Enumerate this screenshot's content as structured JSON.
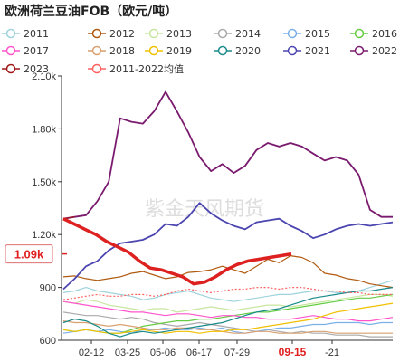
{
  "title": "欧洲荷兰豆油FOB（欧元/吨）",
  "watermark": "紫金天风期货",
  "chart_data": {
    "type": "line",
    "title": "欧洲荷兰豆油FOB（欧元/吨）",
    "x_ticks": [
      "02-12",
      "03-25",
      "05-06",
      "06-17",
      "07-29",
      "09-15",
      "-21"
    ],
    "highlight_tick": "09-15",
    "y_ticks": [
      "600",
      "900",
      "1.20k",
      "1.50k",
      "1.80k",
      "2.10k"
    ],
    "ylim": [
      600,
      2100
    ],
    "current_label": "1.09k",
    "current_value": 1090,
    "legend_position": "top",
    "series": [
      {
        "name": "2011",
        "color": "#9ed3dc",
        "style": "thin",
        "values": [
          870,
          880,
          900,
          880,
          870,
          860,
          850,
          830,
          840,
          860,
          870,
          880,
          860,
          840,
          830,
          820,
          830,
          840,
          850,
          860,
          860,
          870,
          880,
          880,
          870,
          870,
          880,
          900,
          920,
          940
        ]
      },
      {
        "name": "2012",
        "color": "#b05a10",
        "style": "thin",
        "values": [
          960,
          965,
          950,
          940,
          950,
          960,
          980,
          990,
          970,
          950,
          960,
          985,
          990,
          1000,
          1020,
          1000,
          980,
          1020,
          1060,
          1040,
          1080,
          1070,
          1040,
          980,
          970,
          950,
          940,
          920,
          910,
          900
        ]
      },
      {
        "name": "2013",
        "color": "#c8e6a0",
        "style": "thin",
        "values": [
          820,
          810,
          830,
          820,
          800,
          790,
          780,
          770,
          780,
          780,
          760,
          770,
          780,
          790,
          780,
          770,
          780,
          790,
          800,
          800,
          790,
          800,
          810,
          820,
          830,
          840,
          850,
          860,
          860,
          850
        ]
      },
      {
        "name": "2014",
        "color": "#aaaaaa",
        "style": "thin",
        "values": [
          760,
          750,
          740,
          740,
          730,
          720,
          730,
          720,
          700,
          690,
          680,
          690,
          700,
          690,
          680,
          670,
          660,
          650,
          660,
          650,
          640,
          650,
          640,
          640,
          630,
          630,
          630,
          620,
          620,
          620
        ]
      },
      {
        "name": "2015",
        "color": "#7ab0e8",
        "style": "thin",
        "values": [
          640,
          650,
          660,
          650,
          660,
          650,
          640,
          660,
          660,
          670,
          660,
          660,
          670,
          660,
          670,
          650,
          640,
          650,
          660,
          670,
          670,
          680,
          690,
          690,
          700,
          700,
          700,
          690,
          700,
          700
        ]
      },
      {
        "name": "2016",
        "color": "#66cc44",
        "style": "thin",
        "values": [
          660,
          650,
          660,
          650,
          640,
          640,
          660,
          680,
          690,
          700,
          710,
          710,
          720,
          720,
          730,
          740,
          750,
          760,
          760,
          770,
          780,
          790,
          800,
          810,
          820,
          830,
          840,
          840,
          850,
          860
        ]
      },
      {
        "name": "2017",
        "color": "#ff55cc",
        "style": "thin",
        "values": [
          820,
          810,
          800,
          790,
          780,
          770,
          760,
          760,
          750,
          740,
          750,
          750,
          740,
          730,
          740,
          740,
          730,
          730,
          720,
          720,
          720,
          730,
          740,
          730,
          720,
          720,
          710,
          710,
          720,
          730
        ]
      },
      {
        "name": "2018",
        "color": "#d9a070",
        "style": "thin",
        "values": [
          710,
          700,
          700,
          690,
          680,
          690,
          680,
          670,
          660,
          660,
          670,
          670,
          660,
          660,
          650,
          640,
          640,
          650,
          650,
          640,
          640,
          640,
          650,
          650,
          640,
          640,
          640,
          640,
          640,
          640
        ]
      },
      {
        "name": "2019",
        "color": "#f0c000",
        "style": "thin",
        "values": [
          660,
          650,
          660,
          650,
          640,
          640,
          650,
          660,
          650,
          640,
          650,
          650,
          640,
          650,
          650,
          660,
          660,
          670,
          680,
          690,
          700,
          710,
          720,
          740,
          760,
          770,
          780,
          790,
          800,
          810
        ]
      },
      {
        "name": "2020",
        "color": "#1a8a8a",
        "style": "thin",
        "values": [
          700,
          720,
          710,
          680,
          640,
          620,
          640,
          650,
          640,
          650,
          660,
          670,
          680,
          690,
          700,
          720,
          740,
          760,
          770,
          780,
          800,
          820,
          840,
          850,
          860,
          870,
          880,
          880,
          890,
          900
        ]
      },
      {
        "name": "2021",
        "color": "#4b45b0",
        "style": "medium",
        "values": [
          890,
          950,
          1020,
          1050,
          1110,
          1150,
          1160,
          1170,
          1200,
          1260,
          1250,
          1300,
          1380,
          1320,
          1280,
          1250,
          1230,
          1270,
          1280,
          1290,
          1250,
          1220,
          1180,
          1200,
          1230,
          1250,
          1260,
          1250,
          1260,
          1270
        ]
      },
      {
        "name": "2022",
        "color": "#7a1a6e",
        "style": "medium",
        "values": [
          1290,
          1300,
          1310,
          1390,
          1500,
          1860,
          1840,
          1830,
          1900,
          2010,
          1900,
          1780,
          1640,
          1560,
          1600,
          1550,
          1590,
          1680,
          1720,
          1700,
          1720,
          1700,
          1660,
          1620,
          1640,
          1620,
          1540,
          1340,
          1300,
          1300
        ]
      },
      {
        "name": "2023",
        "color": "#a01818",
        "style": "thin",
        "values": [
          1290,
          1300
        ]
      },
      {
        "name": "2011-2022均值",
        "color": "#ff6060",
        "style": "dotted",
        "values": [
          830,
          840,
          850,
          860,
          850,
          850,
          860,
          860,
          850,
          860,
          880,
          890,
          880,
          870,
          880,
          890,
          890,
          900,
          900,
          890,
          900,
          900,
          890,
          880,
          880,
          870,
          870,
          860,
          860,
          860
        ]
      },
      {
        "name": "",
        "color": "#dd2020",
        "style": "bold",
        "values": [
          1290,
          1260,
          1230,
          1200,
          1160,
          1130,
          1100,
          1050,
          1010,
          1000,
          980,
          960,
          920,
          930,
          960,
          1000,
          1030,
          1050,
          1060,
          1070,
          1080,
          1090
        ]
      }
    ]
  }
}
